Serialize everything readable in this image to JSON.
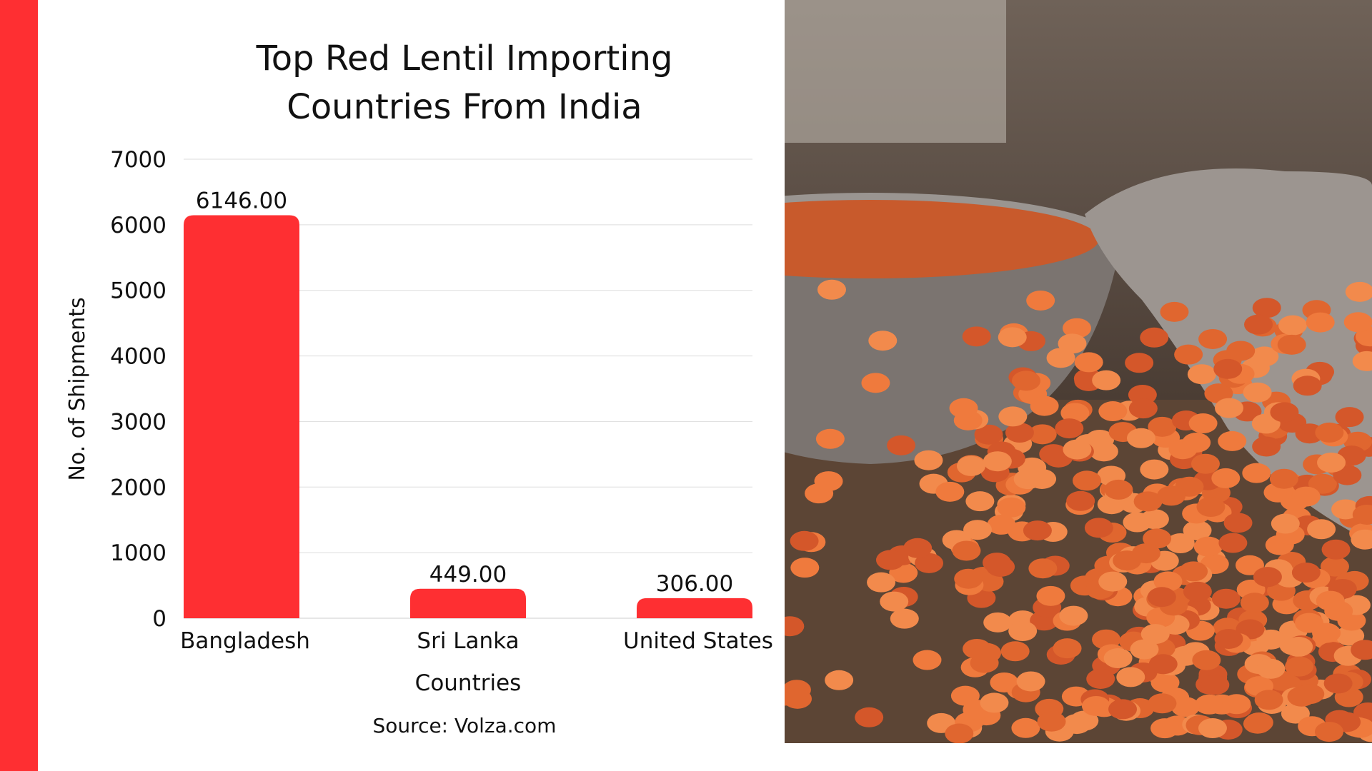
{
  "title_line1": "Top Red Lentil Importing",
  "title_line2": "Countries From India",
  "source": "Source: Volza.com",
  "colors": {
    "accent": "#fe2f32",
    "bar": "#fe2f32",
    "grid": "#dddddd"
  },
  "photo": {
    "description_icon": "red-lentils-photo"
  },
  "chart_data": {
    "type": "bar",
    "title": "Top Red Lentil Importing Countries From India",
    "xlabel": "Countries",
    "ylabel": "No. of Shipments",
    "categories": [
      "Bangladesh",
      "Sri Lanka",
      "United States"
    ],
    "values": [
      6146.0,
      449.0,
      306.0
    ],
    "data_labels": [
      "6146.00",
      "449.00",
      "306.00"
    ],
    "ylim": [
      0,
      7000
    ],
    "yticks": [
      "0",
      "1000",
      "2000",
      "3000",
      "4000",
      "5000",
      "6000",
      "7000"
    ],
    "grid": true
  }
}
